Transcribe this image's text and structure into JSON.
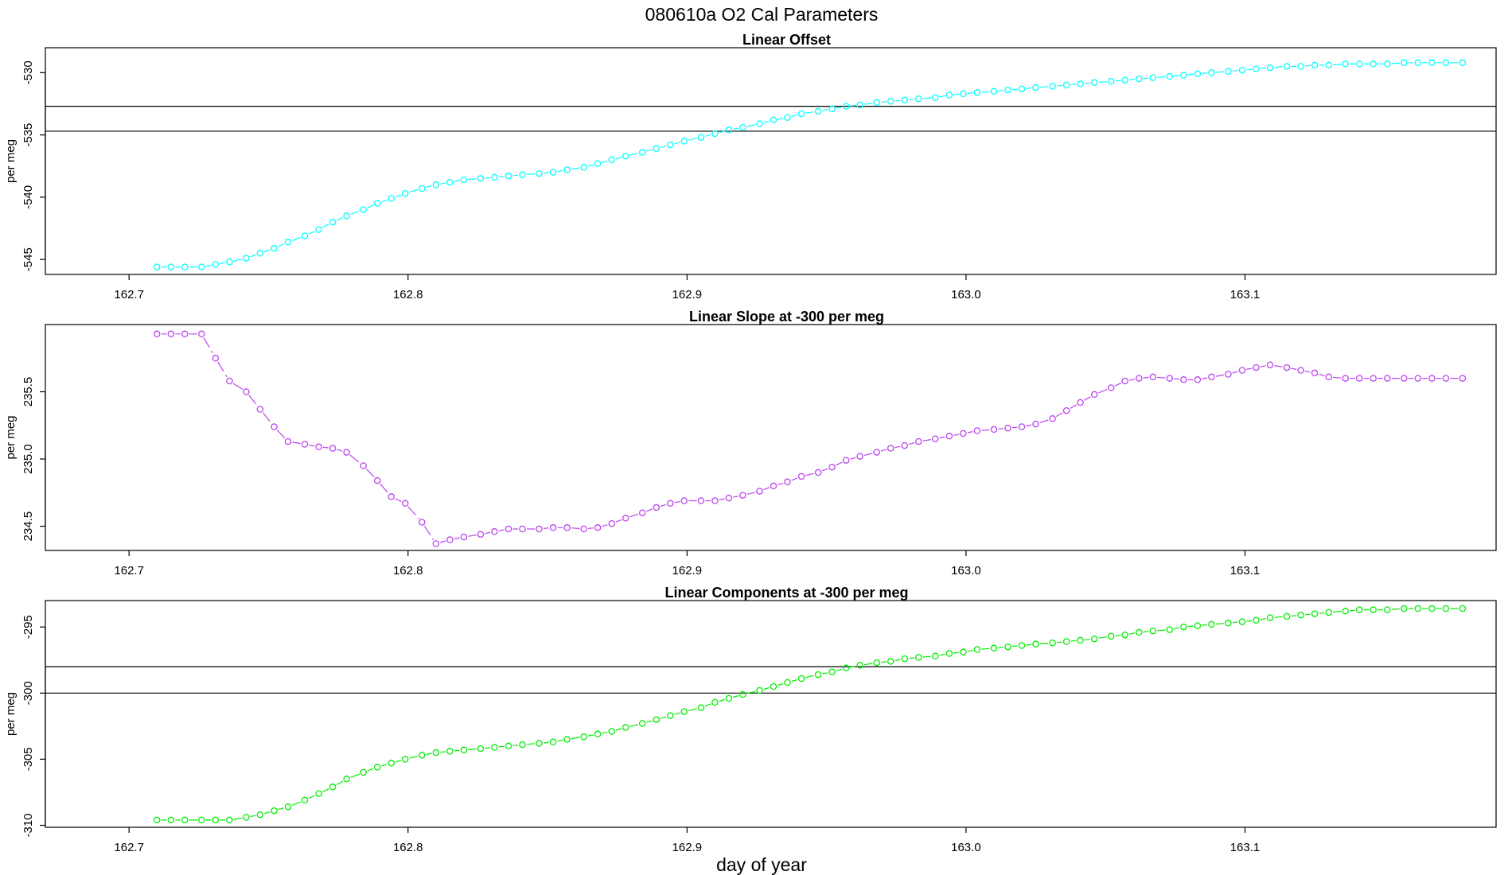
{
  "figure": {
    "main_title": "080610a   O2 Cal Parameters",
    "xlabel": "day of year"
  },
  "chart_data": [
    {
      "type": "scatter",
      "title": "Linear Offset",
      "xlabel": "",
      "ylabel": "per meg",
      "xlim": [
        162.67,
        163.19
      ],
      "ylim": [
        -546.2,
        -528.0
      ],
      "xticks": [
        162.7,
        162.8,
        162.9,
        163.0,
        163.1
      ],
      "xtick_labels": [
        "162.7",
        "162.8",
        "162.9",
        "163.0",
        "163.1"
      ],
      "yticks": [
        -545,
        -540,
        -535,
        -530
      ],
      "ytick_labels": [
        "-545",
        "-540",
        "-535",
        "-530"
      ],
      "hlines": [
        -532.7,
        -534.7
      ],
      "color": "#00ffff",
      "grid": false,
      "series": [
        {
          "x": [
            162.71,
            162.715,
            162.72,
            162.726,
            162.731,
            162.736,
            162.742,
            162.747,
            162.752,
            162.757,
            162.763,
            162.768,
            162.773,
            162.778,
            162.784,
            162.789,
            162.794,
            162.799,
            162.805,
            162.81,
            162.815,
            162.82,
            162.826,
            162.831,
            162.836,
            162.841,
            162.847,
            162.852,
            162.857,
            162.863,
            162.868,
            162.873,
            162.878,
            162.884,
            162.889,
            162.894,
            162.899,
            162.905,
            162.91,
            162.915,
            162.92,
            162.926,
            162.931,
            162.936,
            162.941,
            162.947,
            162.952,
            162.957,
            162.962,
            162.968,
            162.973,
            162.978,
            162.983,
            162.989,
            162.994,
            162.999,
            163.004,
            163.01,
            163.015,
            163.02,
            163.025,
            163.031,
            163.036,
            163.041,
            163.046,
            163.052,
            163.057,
            163.062,
            163.067,
            163.073,
            163.078,
            163.083,
            163.088,
            163.094,
            163.099,
            163.104,
            163.109,
            163.115,
            163.12,
            163.125,
            163.13,
            163.136,
            163.141,
            163.146,
            163.151,
            163.157,
            163.162,
            163.167,
            163.172,
            163.178
          ],
          "y": [
            -545.6,
            -545.6,
            -545.6,
            -545.6,
            -545.4,
            -545.2,
            -544.9,
            -544.5,
            -544.1,
            -543.6,
            -543.1,
            -542.6,
            -542.0,
            -541.5,
            -541.0,
            -540.5,
            -540.1,
            -539.7,
            -539.3,
            -539.0,
            -538.8,
            -538.6,
            -538.5,
            -538.4,
            -538.3,
            -538.2,
            -538.1,
            -538.0,
            -537.8,
            -537.6,
            -537.3,
            -537.0,
            -536.7,
            -536.4,
            -536.1,
            -535.8,
            -535.5,
            -535.2,
            -534.9,
            -534.6,
            -534.4,
            -534.1,
            -533.8,
            -533.6,
            -533.3,
            -533.1,
            -532.9,
            -532.7,
            -532.6,
            -532.4,
            -532.3,
            -532.2,
            -532.1,
            -532.0,
            -531.8,
            -531.7,
            -531.6,
            -531.5,
            -531.4,
            -531.3,
            -531.2,
            -531.1,
            -531.0,
            -530.9,
            -530.8,
            -530.7,
            -530.6,
            -530.5,
            -530.4,
            -530.3,
            -530.2,
            -530.1,
            -530.0,
            -529.9,
            -529.8,
            -529.7,
            -529.6,
            -529.5,
            -529.5,
            -529.4,
            -529.4,
            -529.3,
            -529.3,
            -529.3,
            -529.3,
            -529.2,
            -529.2,
            -529.2,
            -529.2,
            -529.2
          ]
        }
      ]
    },
    {
      "type": "line",
      "title": "Linear Slope at -300 per meg",
      "xlabel": "",
      "ylabel": "per meg",
      "xlim": [
        162.67,
        163.19
      ],
      "ylim": [
        234.32,
        236.0
      ],
      "xticks": [
        162.7,
        162.8,
        162.9,
        163.0,
        163.1
      ],
      "xtick_labels": [
        "162.7",
        "162.8",
        "162.9",
        "163.0",
        "163.1"
      ],
      "yticks": [
        234.5,
        235.0,
        235.5
      ],
      "ytick_labels": [
        "234.5",
        "235.0",
        "235.5"
      ],
      "hlines": [],
      "color": "#bb44ee",
      "grid": false,
      "series": [
        {
          "x": [
            162.71,
            162.715,
            162.72,
            162.726,
            162.731,
            162.736,
            162.742,
            162.747,
            162.752,
            162.757,
            162.763,
            162.768,
            162.773,
            162.778,
            162.784,
            162.789,
            162.794,
            162.799,
            162.805,
            162.81,
            162.815,
            162.82,
            162.826,
            162.831,
            162.836,
            162.841,
            162.847,
            162.852,
            162.857,
            162.863,
            162.868,
            162.873,
            162.878,
            162.884,
            162.889,
            162.894,
            162.899,
            162.905,
            162.91,
            162.915,
            162.92,
            162.926,
            162.931,
            162.936,
            162.941,
            162.947,
            162.952,
            162.957,
            162.962,
            162.968,
            162.973,
            162.978,
            162.983,
            162.989,
            162.994,
            162.999,
            163.004,
            163.01,
            163.015,
            163.02,
            163.025,
            163.031,
            163.036,
            163.041,
            163.046,
            163.052,
            163.057,
            163.062,
            163.067,
            163.073,
            163.078,
            163.083,
            163.088,
            163.094,
            163.099,
            163.104,
            163.109,
            163.115,
            163.12,
            163.125,
            163.13,
            163.136,
            163.141,
            163.146,
            163.151,
            163.157,
            163.162,
            163.167,
            163.172,
            163.178
          ],
          "y": [
            235.93,
            235.93,
            235.93,
            235.93,
            235.75,
            235.58,
            235.5,
            235.37,
            235.24,
            235.13,
            235.11,
            235.09,
            235.08,
            235.05,
            234.95,
            234.84,
            234.72,
            234.67,
            234.53,
            234.37,
            234.4,
            234.42,
            234.44,
            234.46,
            234.48,
            234.48,
            234.48,
            234.49,
            234.49,
            234.48,
            234.49,
            234.52,
            234.56,
            234.6,
            234.64,
            234.67,
            234.69,
            234.69,
            234.69,
            234.71,
            234.73,
            234.76,
            234.8,
            234.83,
            234.87,
            234.9,
            234.94,
            234.99,
            235.02,
            235.05,
            235.08,
            235.1,
            235.13,
            235.15,
            235.17,
            235.19,
            235.21,
            235.22,
            235.23,
            235.24,
            235.26,
            235.3,
            235.36,
            235.42,
            235.48,
            235.53,
            235.58,
            235.6,
            235.61,
            235.6,
            235.59,
            235.59,
            235.61,
            235.63,
            235.66,
            235.68,
            235.7,
            235.68,
            235.66,
            235.64,
            235.61,
            235.6,
            235.6,
            235.6,
            235.6,
            235.6,
            235.6,
            235.6,
            235.6,
            235.6
          ]
        }
      ]
    },
    {
      "type": "scatter",
      "title": "Linear Components at -300 per meg",
      "xlabel": "day of year",
      "ylabel": "per meg",
      "xlim": [
        162.67,
        163.19
      ],
      "ylim": [
        -310.15,
        -293.0
      ],
      "xticks": [
        162.7,
        162.8,
        162.9,
        163.0,
        163.1
      ],
      "xtick_labels": [
        "162.7",
        "162.8",
        "162.9",
        "163.0",
        "163.1"
      ],
      "yticks": [
        -310,
        -305,
        -300,
        -295
      ],
      "ytick_labels": [
        "-310",
        "-305",
        "-300",
        "-295"
      ],
      "hlines": [
        -298.0,
        -300.0
      ],
      "color": "#00ee00",
      "grid": false,
      "series": [
        {
          "x": [
            162.71,
            162.715,
            162.72,
            162.726,
            162.731,
            162.736,
            162.742,
            162.747,
            162.752,
            162.757,
            162.763,
            162.768,
            162.773,
            162.778,
            162.784,
            162.789,
            162.794,
            162.799,
            162.805,
            162.81,
            162.815,
            162.82,
            162.826,
            162.831,
            162.836,
            162.841,
            162.847,
            162.852,
            162.857,
            162.863,
            162.868,
            162.873,
            162.878,
            162.884,
            162.889,
            162.894,
            162.899,
            162.905,
            162.91,
            162.915,
            162.92,
            162.926,
            162.931,
            162.936,
            162.941,
            162.947,
            162.952,
            162.957,
            162.962,
            162.968,
            162.973,
            162.978,
            162.983,
            162.989,
            162.994,
            162.999,
            163.004,
            163.01,
            163.015,
            163.02,
            163.025,
            163.031,
            163.036,
            163.041,
            163.046,
            163.052,
            163.057,
            163.062,
            163.067,
            163.073,
            163.078,
            163.083,
            163.088,
            163.094,
            163.099,
            163.104,
            163.109,
            163.115,
            163.12,
            163.125,
            163.13,
            163.136,
            163.141,
            163.146,
            163.151,
            163.157,
            163.162,
            163.167,
            163.172,
            163.178
          ],
          "y": [
            -309.6,
            -309.6,
            -309.6,
            -309.6,
            -309.6,
            -309.6,
            -309.4,
            -309.2,
            -308.9,
            -308.6,
            -308.1,
            -307.6,
            -307.1,
            -306.5,
            -306.0,
            -305.6,
            -305.3,
            -305.0,
            -304.7,
            -304.5,
            -304.4,
            -304.3,
            -304.2,
            -304.1,
            -304.0,
            -303.9,
            -303.8,
            -303.7,
            -303.5,
            -303.3,
            -303.1,
            -302.9,
            -302.6,
            -302.3,
            -302.0,
            -301.7,
            -301.4,
            -301.1,
            -300.7,
            -300.4,
            -300.1,
            -299.8,
            -299.5,
            -299.2,
            -298.9,
            -298.6,
            -298.4,
            -298.1,
            -297.9,
            -297.7,
            -297.6,
            -297.4,
            -297.3,
            -297.2,
            -297.0,
            -296.9,
            -296.7,
            -296.6,
            -296.5,
            -296.4,
            -296.3,
            -296.2,
            -296.1,
            -296.0,
            -295.9,
            -295.7,
            -295.6,
            -295.4,
            -295.3,
            -295.2,
            -295.0,
            -294.9,
            -294.8,
            -294.7,
            -294.6,
            -294.5,
            -294.3,
            -294.2,
            -294.1,
            -294.0,
            -293.9,
            -293.8,
            -293.7,
            -293.7,
            -293.7,
            -293.6,
            -293.6,
            -293.6,
            -293.6,
            -293.6
          ]
        }
      ]
    }
  ]
}
